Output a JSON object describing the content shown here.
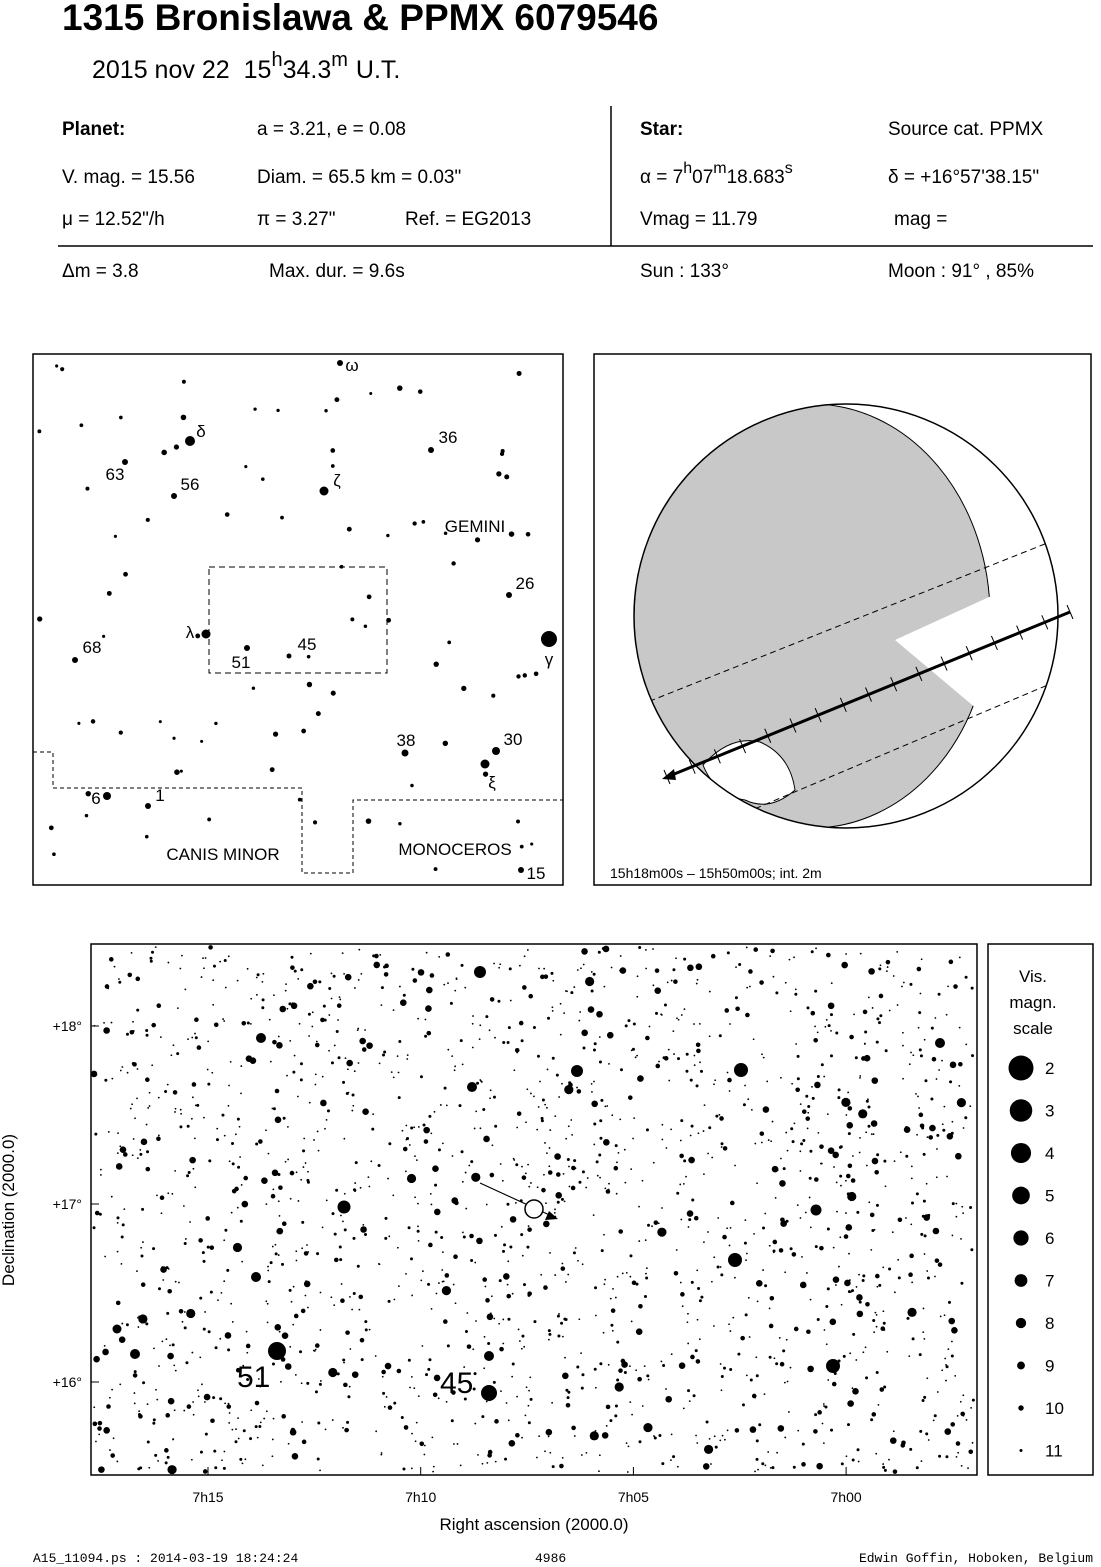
{
  "header": {
    "title": "1315 Bronislawa  &  PPMX 6079546",
    "date": "2015 nov 22",
    "time_hours": "15",
    "time_h": "h",
    "time_minutes": "34.3",
    "time_m": "m",
    "time_scale": "U.T."
  },
  "planet": {
    "label": "Planet:",
    "elements": "a = 3.21, e = 0.08",
    "vmag": "V. mag. = 15.56",
    "diam": "Diam. = 65.5 km = 0.03\"",
    "motion": "μ =  12.52\"/h",
    "parallax": "π =  3.27\"",
    "ref": "Ref. = EG2013"
  },
  "star": {
    "label": "Star:",
    "source": "Source cat.  PPMX",
    "ra_prefix": "α =  7",
    "ra_h": "h",
    "ra_min": "07",
    "ra_m": "m",
    "ra_sec": "18.683",
    "ra_s": "s",
    "dec": "δ = +16°57'38.15\"",
    "vmag": "Vmag = 11.79",
    "mag": "mag ="
  },
  "event": {
    "delta_mag": "Δm = 3.8",
    "max_duration": "Max. dur. = 9.6s",
    "sun": "Sun : 133°",
    "moon": "Moon :  91° , 85%"
  },
  "finder_chart": {
    "labels": [
      "ω",
      "δ",
      "36",
      "63",
      "56",
      "ζ",
      "GEMINI",
      "26",
      "λ",
      "45",
      "51",
      "68",
      "γ",
      "38",
      "30",
      "ξ",
      "6",
      "1",
      "CANIS MINOR",
      "MONOCEROS",
      "15"
    ]
  },
  "globe": {
    "caption": "15h18m00s – 15h50m00s; int.  2m"
  },
  "star_chart": {
    "y_axis_label": "Declination (2000.0)",
    "x_axis_label": "Right ascension (2000.0)",
    "yticks": [
      "+18°",
      "+17°",
      "+16°"
    ],
    "xticks": [
      "7h15",
      "7h10",
      "7h05",
      "7h00"
    ],
    "star_labels": [
      "51",
      "45"
    ]
  },
  "legend": {
    "title": [
      "Vis.",
      "magn.",
      "scale"
    ],
    "magnitudes": [
      2,
      3,
      4,
      5,
      6,
      7,
      8,
      9,
      10,
      11
    ]
  },
  "footer": {
    "file": "A15_11094.ps : 2014-03-19 18:24:24",
    "number": "4986",
    "author": "Edwin Goffin, Hoboken, Belgium"
  }
}
